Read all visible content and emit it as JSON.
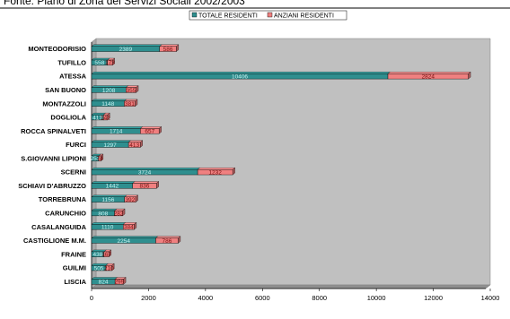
{
  "chart_data": {
    "type": "bar",
    "orientation": "horizontal",
    "stacked": true,
    "title": "Fonte: Piano di Zona dei Servizi Sociali 2002/2003",
    "categories": [
      "MONTEODORISIO",
      "TUFILLO",
      "ATESSA",
      "SAN BUONO",
      "MONTAZZOLI",
      "DOGLIOLA",
      "ROCCA SPINALVETI",
      "FURCI",
      "S.GIOVANNI LIPIONI",
      "SCERNI",
      "SCHIAVI D'ABRUZZO",
      "TORREBRUNA",
      "CARUNCHIO",
      "CASALANGUIDA",
      "CASTIGLIONE M.M.",
      "FRAINE",
      "GUILMI",
      "LISCIA"
    ],
    "series": [
      {
        "name": "TOTALE RESIDENTI",
        "color": "#2f8f8f",
        "values": [
          2389,
          558,
          10406,
          1208,
          1148,
          417,
          1714,
          1297,
          252,
          3724,
          1442,
          1156,
          808,
          1110,
          2254,
          438,
          505,
          824
        ]
      },
      {
        "name": "ANZIANI RESIDENTI",
        "color": "#f08080",
        "values": [
          586,
          173,
          2824,
          355,
          381,
          142,
          657,
          413,
          74,
          1232,
          836,
          392,
          282,
          384,
          786,
          167,
          210,
          299
        ]
      }
    ],
    "xlim": [
      0,
      14000
    ],
    "xticks": [
      "0",
      "2000",
      "4000",
      "6000",
      "8000",
      "10000",
      "12000",
      "14000"
    ],
    "legend_position": "top",
    "grid": false,
    "plot_bg": "#c0c0c0"
  }
}
